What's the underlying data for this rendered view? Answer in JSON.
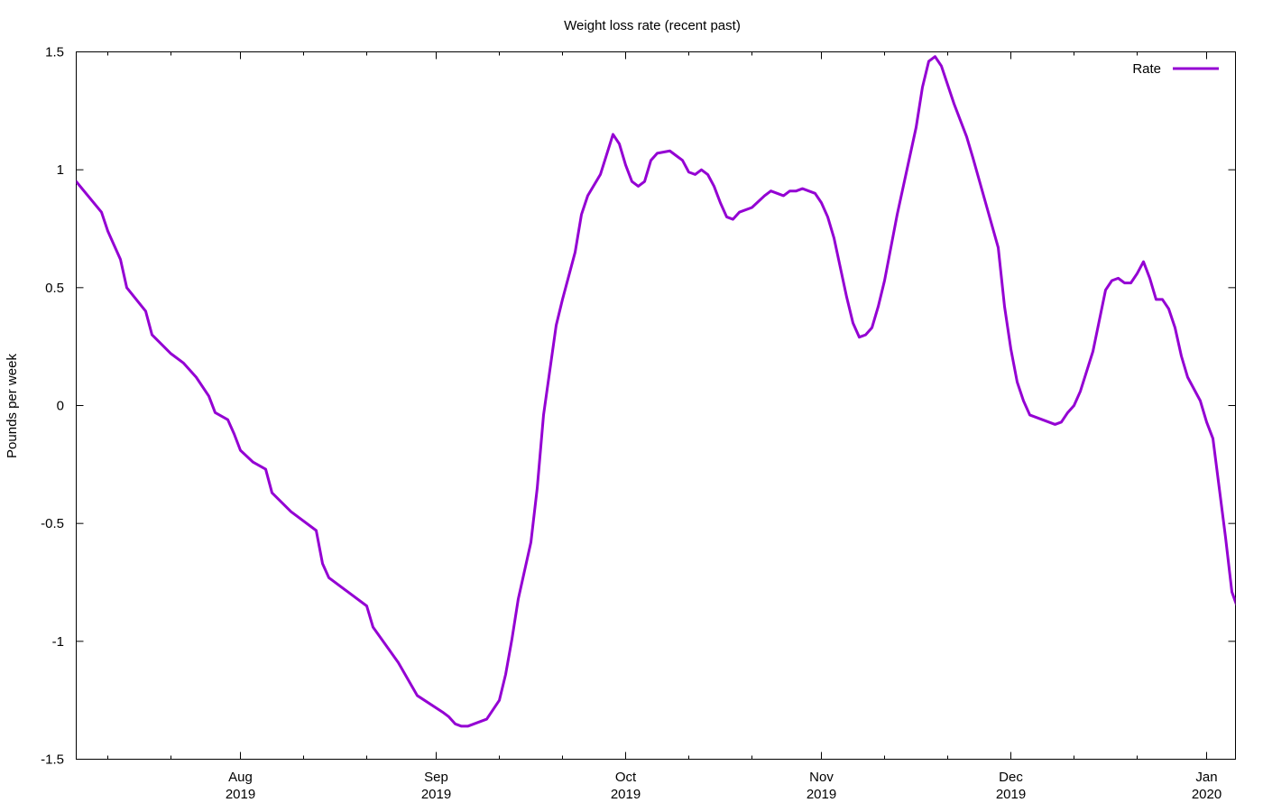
{
  "chart_data": {
    "type": "line",
    "title": "Weight loss rate (recent past)",
    "ylabel": "Pounds per week",
    "xlabel": "",
    "ylim": [
      -1.5,
      1.5
    ],
    "xlim": [
      "2019-07-06",
      "2020-01-04"
    ],
    "y_ticks": [
      {
        "value": 1.5,
        "label": "1.5"
      },
      {
        "value": 1,
        "label": "1"
      },
      {
        "value": 0.5,
        "label": "0.5"
      },
      {
        "value": 0,
        "label": "0"
      },
      {
        "value": -0.5,
        "label": "-0.5"
      },
      {
        "value": -1,
        "label": "-1"
      },
      {
        "value": -1.5,
        "label": "-1.5"
      }
    ],
    "x_ticks": [
      {
        "date": "2019-08-01",
        "month": "Aug",
        "year": "2019"
      },
      {
        "date": "2019-09-01",
        "month": "Sep",
        "year": "2019"
      },
      {
        "date": "2019-10-01",
        "month": "Oct",
        "year": "2019"
      },
      {
        "date": "2019-11-01",
        "month": "Nov",
        "year": "2019"
      },
      {
        "date": "2019-12-01",
        "month": "Dec",
        "year": "2019"
      },
      {
        "date": "2020-01-01",
        "month": "Jan",
        "year": "2020"
      }
    ],
    "minor_x_ticks": [
      "2019-07-11",
      "2019-07-21",
      "2019-08-11",
      "2019-08-21",
      "2019-09-11",
      "2019-09-21",
      "2019-10-11",
      "2019-10-21",
      "2019-11-11",
      "2019-11-21",
      "2019-12-11",
      "2019-12-21"
    ],
    "grid": false,
    "legend_position": "top-right",
    "series": [
      {
        "name": "Rate",
        "color": "#9400d3",
        "points": [
          [
            "2019-07-06",
            0.95
          ],
          [
            "2019-07-10",
            0.82
          ],
          [
            "2019-07-11",
            0.74
          ],
          [
            "2019-07-13",
            0.62
          ],
          [
            "2019-07-14",
            0.5
          ],
          [
            "2019-07-17",
            0.4
          ],
          [
            "2019-07-18",
            0.3
          ],
          [
            "2019-07-21",
            0.22
          ],
          [
            "2019-07-23",
            0.18
          ],
          [
            "2019-07-25",
            0.12
          ],
          [
            "2019-07-27",
            0.04
          ],
          [
            "2019-07-28",
            -0.03
          ],
          [
            "2019-07-30",
            -0.06
          ],
          [
            "2019-07-31",
            -0.12
          ],
          [
            "2019-08-01",
            -0.19
          ],
          [
            "2019-08-03",
            -0.24
          ],
          [
            "2019-08-05",
            -0.27
          ],
          [
            "2019-08-06",
            -0.37
          ],
          [
            "2019-08-09",
            -0.45
          ],
          [
            "2019-08-13",
            -0.53
          ],
          [
            "2019-08-14",
            -0.67
          ],
          [
            "2019-08-15",
            -0.73
          ],
          [
            "2019-08-18",
            -0.79
          ],
          [
            "2019-08-21",
            -0.85
          ],
          [
            "2019-08-22",
            -0.94
          ],
          [
            "2019-08-26",
            -1.09
          ],
          [
            "2019-08-29",
            -1.23
          ],
          [
            "2019-09-02",
            -1.3
          ],
          [
            "2019-09-03",
            -1.32
          ],
          [
            "2019-09-04",
            -1.35
          ],
          [
            "2019-09-05",
            -1.36
          ],
          [
            "2019-09-06",
            -1.36
          ],
          [
            "2019-09-08",
            -1.34
          ],
          [
            "2019-09-09",
            -1.33
          ],
          [
            "2019-09-11",
            -1.25
          ],
          [
            "2019-09-12",
            -1.14
          ],
          [
            "2019-09-13",
            -0.99
          ],
          [
            "2019-09-14",
            -0.82
          ],
          [
            "2019-09-16",
            -0.58
          ],
          [
            "2019-09-17",
            -0.35
          ],
          [
            "2019-09-18",
            -0.04
          ],
          [
            "2019-09-19",
            0.15
          ],
          [
            "2019-09-20",
            0.34
          ],
          [
            "2019-09-21",
            0.45
          ],
          [
            "2019-09-23",
            0.65
          ],
          [
            "2019-09-24",
            0.81
          ],
          [
            "2019-09-25",
            0.89
          ],
          [
            "2019-09-27",
            0.98
          ],
          [
            "2019-09-29",
            1.15
          ],
          [
            "2019-09-30",
            1.11
          ],
          [
            "2019-10-01",
            1.02
          ],
          [
            "2019-10-02",
            0.95
          ],
          [
            "2019-10-03",
            0.93
          ],
          [
            "2019-10-04",
            0.95
          ],
          [
            "2019-10-05",
            1.04
          ],
          [
            "2019-10-06",
            1.07
          ],
          [
            "2019-10-08",
            1.08
          ],
          [
            "2019-10-09",
            1.06
          ],
          [
            "2019-10-10",
            1.04
          ],
          [
            "2019-10-11",
            0.99
          ],
          [
            "2019-10-12",
            0.98
          ],
          [
            "2019-10-13",
            1.0
          ],
          [
            "2019-10-14",
            0.98
          ],
          [
            "2019-10-15",
            0.93
          ],
          [
            "2019-10-16",
            0.86
          ],
          [
            "2019-10-17",
            0.8
          ],
          [
            "2019-10-18",
            0.79
          ],
          [
            "2019-10-19",
            0.82
          ],
          [
            "2019-10-21",
            0.84
          ],
          [
            "2019-10-23",
            0.89
          ],
          [
            "2019-10-24",
            0.91
          ],
          [
            "2019-10-26",
            0.89
          ],
          [
            "2019-10-27",
            0.91
          ],
          [
            "2019-10-28",
            0.91
          ],
          [
            "2019-10-29",
            0.92
          ],
          [
            "2019-10-31",
            0.9
          ],
          [
            "2019-11-01",
            0.86
          ],
          [
            "2019-11-02",
            0.8
          ],
          [
            "2019-11-03",
            0.71
          ],
          [
            "2019-11-05",
            0.46
          ],
          [
            "2019-11-06",
            0.35
          ],
          [
            "2019-11-07",
            0.29
          ],
          [
            "2019-11-08",
            0.3
          ],
          [
            "2019-11-09",
            0.33
          ],
          [
            "2019-11-10",
            0.42
          ],
          [
            "2019-11-11",
            0.53
          ],
          [
            "2019-11-13",
            0.81
          ],
          [
            "2019-11-16",
            1.18
          ],
          [
            "2019-11-17",
            1.35
          ],
          [
            "2019-11-18",
            1.46
          ],
          [
            "2019-11-19",
            1.48
          ],
          [
            "2019-11-20",
            1.44
          ],
          [
            "2019-11-22",
            1.28
          ],
          [
            "2019-11-24",
            1.14
          ],
          [
            "2019-11-25",
            1.05
          ],
          [
            "2019-11-27",
            0.86
          ],
          [
            "2019-11-29",
            0.67
          ],
          [
            "2019-11-30",
            0.42
          ],
          [
            "2019-12-01",
            0.24
          ],
          [
            "2019-12-02",
            0.1
          ],
          [
            "2019-12-03",
            0.02
          ],
          [
            "2019-12-04",
            -0.04
          ],
          [
            "2019-12-06",
            -0.06
          ],
          [
            "2019-12-08",
            -0.08
          ],
          [
            "2019-12-09",
            -0.07
          ],
          [
            "2019-12-10",
            -0.03
          ],
          [
            "2019-12-11",
            0.0
          ],
          [
            "2019-12-12",
            0.06
          ],
          [
            "2019-12-14",
            0.23
          ],
          [
            "2019-12-16",
            0.49
          ],
          [
            "2019-12-17",
            0.53
          ],
          [
            "2019-12-18",
            0.54
          ],
          [
            "2019-12-19",
            0.52
          ],
          [
            "2019-12-20",
            0.52
          ],
          [
            "2019-12-21",
            0.56
          ],
          [
            "2019-12-22",
            0.61
          ],
          [
            "2019-12-23",
            0.54
          ],
          [
            "2019-12-24",
            0.45
          ],
          [
            "2019-12-25",
            0.45
          ],
          [
            "2019-12-26",
            0.41
          ],
          [
            "2019-12-27",
            0.33
          ],
          [
            "2019-12-28",
            0.21
          ],
          [
            "2019-12-29",
            0.12
          ],
          [
            "2019-12-31",
            0.02
          ],
          [
            "2020-01-01",
            -0.07
          ],
          [
            "2020-01-02",
            -0.14
          ],
          [
            "2020-01-03",
            -0.35
          ],
          [
            "2020-01-04",
            -0.56
          ],
          [
            "2020-01-05",
            -0.79
          ],
          [
            "2020-01-07",
            -0.94
          ]
        ]
      }
    ]
  }
}
